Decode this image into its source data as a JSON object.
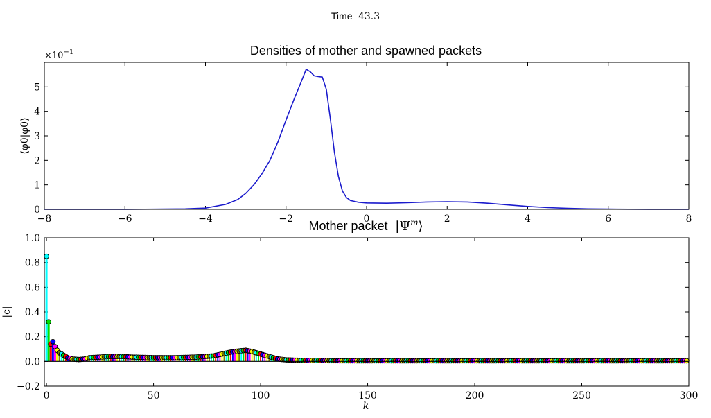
{
  "figure": {
    "suptitle_prefix": "Time",
    "suptitle_value": "43.3"
  },
  "chart_data": [
    {
      "type": "line",
      "title": "Densities of mother and spawned packets",
      "ylabel": "⟨φ0|φ0⟩",
      "xlabel": "",
      "multiplier_base": "×10",
      "multiplier_exp": "−1",
      "xlim": [
        -8,
        8
      ],
      "ylim": [
        0,
        6
      ],
      "grid": false,
      "x_ticks": [
        -8,
        -6,
        -4,
        -2,
        0,
        2,
        4,
        6,
        8
      ],
      "x_tick_labels": [
        "−8",
        "−6",
        "−4",
        "−2",
        "0",
        "2",
        "4",
        "6",
        "8"
      ],
      "y_ticks": [
        0,
        1,
        2,
        3,
        4,
        5
      ],
      "y_tick_labels": [
        "0",
        "1",
        "2",
        "3",
        "4",
        "5"
      ],
      "color": "#1a1acc",
      "series": [
        {
          "x": [
            -8,
            -6,
            -5,
            -4.5,
            -4,
            -3.5,
            -3.2,
            -3.0,
            -2.8,
            -2.6,
            -2.4,
            -2.2,
            -2.0,
            -1.8,
            -1.6,
            -1.5,
            -1.4,
            -1.3,
            -1.2,
            -1.1,
            -1.0,
            -0.9,
            -0.8,
            -0.7,
            -0.6,
            -0.5,
            -0.4,
            -0.2,
            0,
            0.5,
            1,
            1.5,
            2,
            2.5,
            3,
            3.5,
            4,
            4.5,
            5,
            5.5,
            6,
            6.5,
            7,
            8
          ],
          "y": [
            0,
            0,
            0.01,
            0.02,
            0.05,
            0.2,
            0.4,
            0.65,
            1.0,
            1.45,
            2.0,
            2.75,
            3.65,
            4.5,
            5.3,
            5.72,
            5.62,
            5.45,
            5.42,
            5.4,
            4.9,
            3.7,
            2.35,
            1.35,
            0.75,
            0.48,
            0.36,
            0.29,
            0.26,
            0.25,
            0.27,
            0.3,
            0.31,
            0.3,
            0.25,
            0.18,
            0.12,
            0.07,
            0.04,
            0.02,
            0.01,
            0.005,
            0,
            0
          ]
        }
      ]
    },
    {
      "type": "scatter",
      "title": "Mother packet",
      "title_math": "|Ψ",
      "title_math_sup": "m",
      "title_math_close": "⟩",
      "xlabel": "k",
      "ylabel": "|c|",
      "xlim": [
        -1,
        300
      ],
      "ylim": [
        -0.2,
        1.0
      ],
      "grid": false,
      "x_ticks": [
        0,
        50,
        100,
        150,
        200,
        250,
        300
      ],
      "x_tick_labels": [
        "0",
        "50",
        "100",
        "150",
        "200",
        "250",
        "300"
      ],
      "y_ticks": [
        -0.2,
        0.0,
        0.2,
        0.4,
        0.6,
        0.8,
        1.0
      ],
      "y_tick_labels": [
        "−0.2",
        "0.0",
        "0.2",
        "0.4",
        "0.6",
        "0.8",
        "1.0"
      ],
      "stem_colors": [
        "#00ffff",
        "#00e000",
        "#ff0000",
        "#0000ff",
        "#ff00ff",
        "#ffff00",
        "#808000"
      ],
      "envelope_k": [
        0,
        1,
        2,
        3,
        4,
        5,
        6,
        8,
        10,
        12,
        15,
        18,
        20,
        25,
        30,
        35,
        40,
        50,
        60,
        70,
        78,
        82,
        86,
        90,
        93,
        96,
        100,
        104,
        108,
        112,
        120,
        140,
        300
      ],
      "envelope_c": [
        0.85,
        0.32,
        0.14,
        0.16,
        0.12,
        0.09,
        0.07,
        0.05,
        0.03,
        0.02,
        0.015,
        0.02,
        0.03,
        0.035,
        0.04,
        0.04,
        0.035,
        0.03,
        0.03,
        0.035,
        0.045,
        0.06,
        0.075,
        0.085,
        0.09,
        0.08,
        0.06,
        0.04,
        0.02,
        0.012,
        0.008,
        0.005,
        0.005
      ]
    }
  ]
}
